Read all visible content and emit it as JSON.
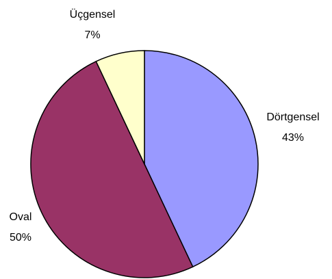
{
  "chart_data": {
    "type": "pie",
    "categories": [
      "Dörtgensel",
      "Oval",
      "Üçgensel"
    ],
    "values": [
      43,
      50,
      7
    ],
    "value_labels": [
      "43%",
      "50%",
      "7%"
    ],
    "colors": [
      "#9999ff",
      "#993366",
      "#ffffcc"
    ]
  }
}
